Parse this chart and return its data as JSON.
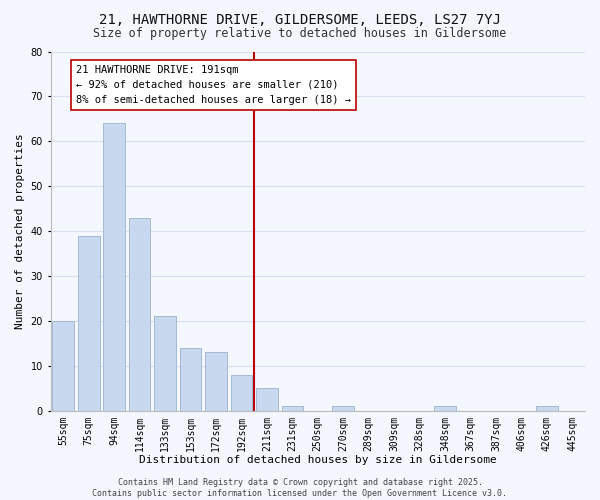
{
  "title": "21, HAWTHORNE DRIVE, GILDERSOME, LEEDS, LS27 7YJ",
  "subtitle": "Size of property relative to detached houses in Gildersome",
  "xlabel": "Distribution of detached houses by size in Gildersome",
  "ylabel": "Number of detached properties",
  "bar_labels": [
    "55sqm",
    "75sqm",
    "94sqm",
    "114sqm",
    "133sqm",
    "153sqm",
    "172sqm",
    "192sqm",
    "211sqm",
    "231sqm",
    "250sqm",
    "270sqm",
    "289sqm",
    "309sqm",
    "328sqm",
    "348sqm",
    "367sqm",
    "387sqm",
    "406sqm",
    "426sqm",
    "445sqm"
  ],
  "bar_values": [
    20,
    39,
    64,
    43,
    21,
    14,
    13,
    8,
    5,
    1,
    0,
    1,
    0,
    0,
    0,
    1,
    0,
    0,
    0,
    1,
    0
  ],
  "bar_color": "#c8d8ee",
  "bar_edgecolor": "#9ab4d0",
  "vline_index": 7,
  "vline_color": "#bb0000",
  "ylim": [
    0,
    80
  ],
  "yticks": [
    0,
    10,
    20,
    30,
    40,
    50,
    60,
    70,
    80
  ],
  "annotation_lines": [
    "21 HAWTHORNE DRIVE: 191sqm",
    "← 92% of detached houses are smaller (210)",
    "8% of semi-detached houses are larger (18) →"
  ],
  "footer_lines": [
    "Contains HM Land Registry data © Crown copyright and database right 2025.",
    "Contains public sector information licensed under the Open Government Licence v3.0."
  ],
  "bg_color": "#f5f7ff",
  "grid_color": "#d8dff0",
  "title_fontsize": 10,
  "subtitle_fontsize": 8.5,
  "axis_label_fontsize": 8,
  "tick_fontsize": 7,
  "annotation_fontsize": 7.5,
  "footer_fontsize": 6
}
